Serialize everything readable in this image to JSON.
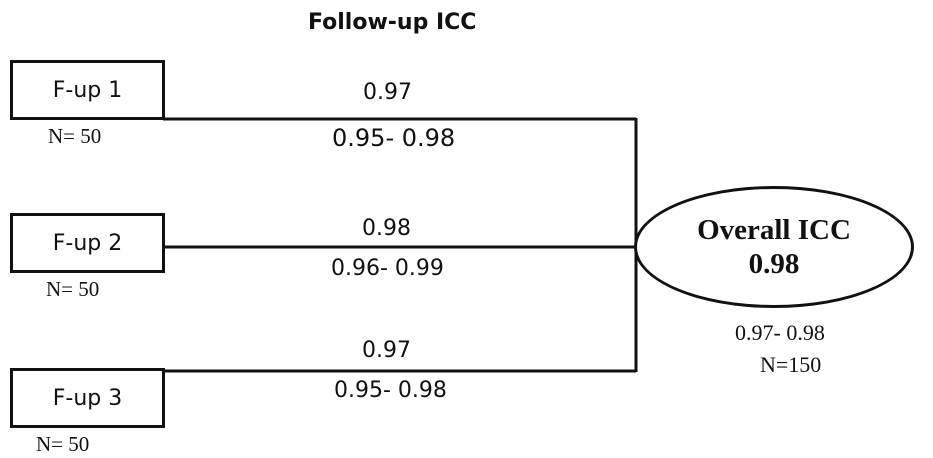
{
  "title": "Follow-up ICC",
  "followups": [
    {
      "label": "F-up 1",
      "n": "N= 50",
      "icc": "0.97",
      "ci": "0.95- 0.98"
    },
    {
      "label": "F-up 2",
      "n": "N= 50",
      "icc": "0.98",
      "ci": "0.96- 0.99"
    },
    {
      "label": "F-up 3",
      "n": "N= 50",
      "icc": "0.97",
      "ci": "0.95- 0.98"
    }
  ],
  "overall": {
    "title": "Overall ICC",
    "icc": "0.98",
    "ci": "0.97- 0.98",
    "n": "N=150"
  }
}
